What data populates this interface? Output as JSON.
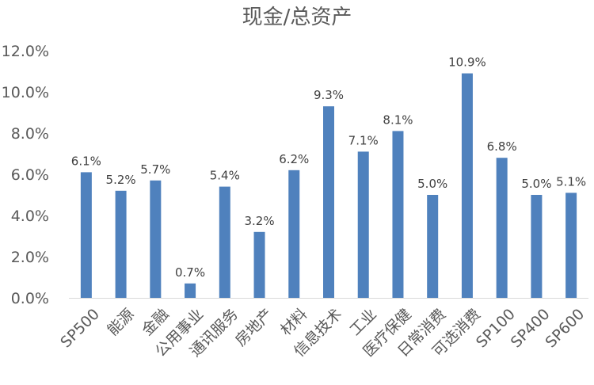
{
  "chart_data": {
    "type": "bar",
    "title": "现金/总资产",
    "xlabel": "",
    "ylabel": "",
    "categories": [
      "SP500",
      "能源",
      "金融",
      "公用事业",
      "通讯服务",
      "房地产",
      "材料",
      "信息技术",
      "工业",
      "医疗保健",
      "日常消费",
      "可选消费",
      "SP100",
      "SP400",
      "SP600"
    ],
    "values": [
      6.1,
      5.2,
      5.7,
      0.7,
      5.4,
      3.2,
      6.2,
      9.3,
      7.1,
      8.1,
      5.0,
      10.9,
      6.8,
      5.0,
      5.1
    ],
    "data_labels": [
      "6.1%",
      "5.2%",
      "5.7%",
      "0.7%",
      "5.4%",
      "3.2%",
      "6.2%",
      "9.3%",
      "7.1%",
      "8.1%",
      "5.0%",
      "10.9%",
      "6.8%",
      "5.0%",
      "5.1%"
    ],
    "y_ticks": [
      "0.0%",
      "2.0%",
      "4.0%",
      "6.0%",
      "8.0%",
      "10.0%",
      "12.0%"
    ],
    "ylim": [
      0,
      12
    ],
    "grid": false,
    "legend": "none",
    "bar_color": "#4f81bd",
    "axis_color": "#d9d9d9"
  }
}
